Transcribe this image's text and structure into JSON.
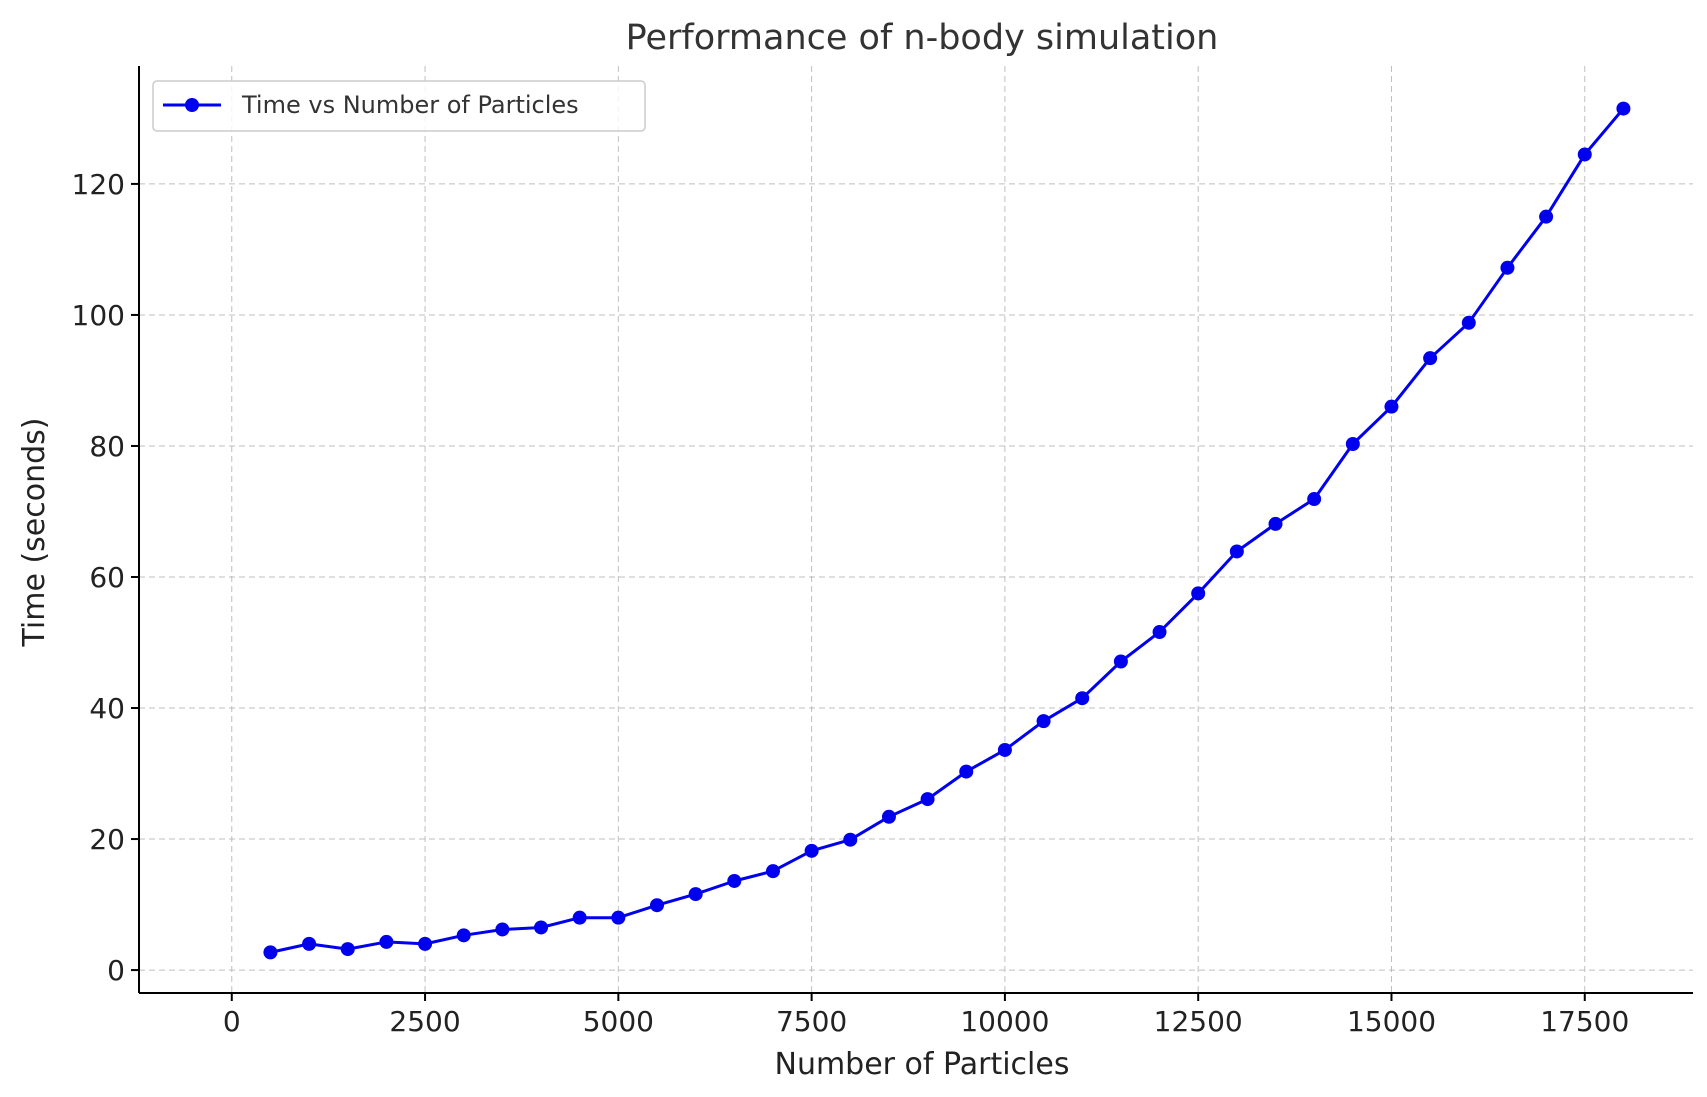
{
  "chart_data": {
    "type": "line",
    "title": "Performance of n-body simulation",
    "xlabel": "Number of Particles",
    "ylabel": "Time (seconds)",
    "xlim": [
      -1200,
      18900
    ],
    "ylim": [
      -3.5,
      138
    ],
    "xticks": [
      0,
      2500,
      5000,
      7500,
      10000,
      12500,
      15000,
      17500
    ],
    "yticks": [
      0,
      20,
      40,
      60,
      80,
      100,
      120
    ],
    "grid": true,
    "legend_position": "top-left",
    "series": [
      {
        "name": "Time vs Number of Particles",
        "color": "#0000ee",
        "marker": "circle",
        "x": [
          500,
          1000,
          1500,
          2000,
          2500,
          3000,
          3500,
          4000,
          4500,
          5000,
          5500,
          6000,
          6500,
          7000,
          7500,
          8000,
          8500,
          9000,
          9500,
          10000,
          10500,
          11000,
          11500,
          12000,
          12500,
          13000,
          13500,
          14000,
          14500,
          15000,
          15500,
          16000,
          16500,
          17000,
          17500,
          18000
        ],
        "y": [
          2.7,
          4.0,
          3.2,
          4.3,
          4.0,
          5.3,
          6.2,
          6.5,
          8.0,
          8.0,
          9.9,
          11.6,
          13.6,
          15.1,
          18.2,
          19.9,
          23.4,
          26.1,
          30.3,
          33.6,
          38.0,
          41.5,
          47.1,
          51.6,
          57.5,
          63.9,
          68.1,
          71.9,
          80.3,
          86.0,
          93.4,
          98.8,
          107.2,
          115.0,
          124.5,
          131.5
        ]
      }
    ]
  }
}
